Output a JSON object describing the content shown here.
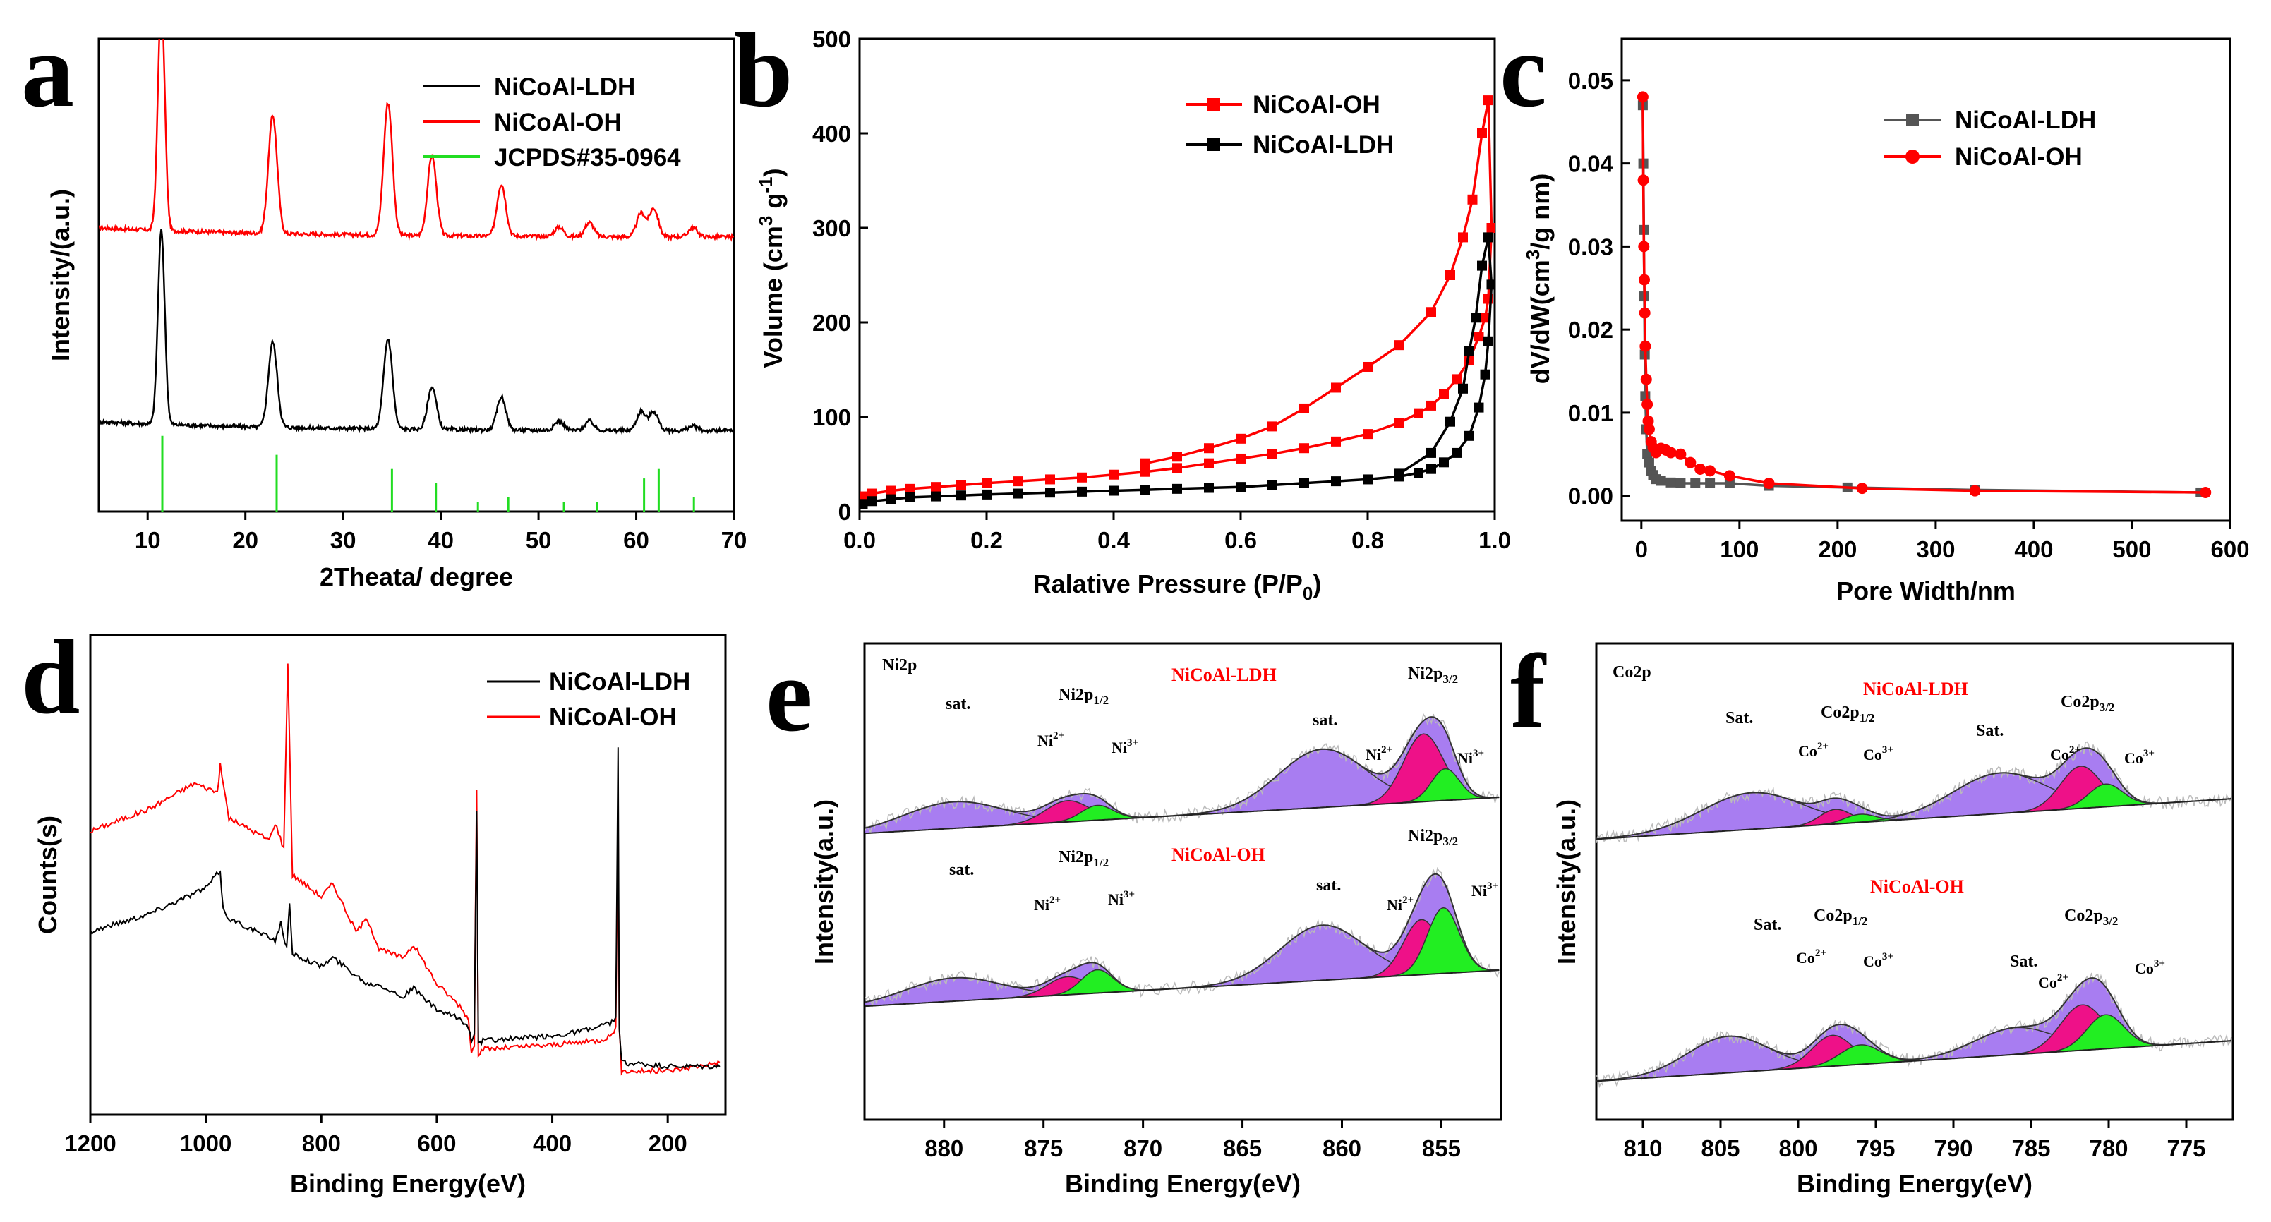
{
  "colors": {
    "ldh": "#000000",
    "oh": "#ff0000",
    "jcpds": "#22dd22",
    "envelope": "#9966ee",
    "ni2": "#ee1188",
    "ni3": "#22ee22",
    "raw": "#bbbbbb",
    "sample_label": "#ff0000"
  },
  "chart_data": [
    {
      "panel": "a",
      "type": "line",
      "title": "",
      "xlabel": "2Theata/ degree",
      "ylabel": "Intensity/(a.u.)",
      "xlim": [
        5,
        70
      ],
      "xticks": [
        "10",
        "20",
        "30",
        "40",
        "50",
        "60",
        "70"
      ],
      "legend": [
        "NiCoAl-LDH",
        "NiCoAl-OH",
        "JCPDS#35-0964"
      ],
      "legend_position": "top-right",
      "peaks_2theta": [
        11.4,
        22.8,
        34.6,
        39.1,
        46.2,
        52.1,
        55.2,
        60.5,
        61.8,
        65.8
      ],
      "series": [
        {
          "name": "NiCoAl-OH",
          "baseline": 0.58,
          "heights": [
            0.49,
            0.25,
            0.28,
            0.17,
            0.11,
            0.02,
            0.03,
            0.05,
            0.06,
            0.02
          ]
        },
        {
          "name": "NiCoAl-LDH",
          "baseline": 0.17,
          "heights": [
            0.41,
            0.18,
            0.19,
            0.09,
            0.07,
            0.02,
            0.02,
            0.04,
            0.04,
            0.01
          ]
        }
      ],
      "reference_lines": {
        "name": "JCPDS#35-0964",
        "positions": [
          11.5,
          23.2,
          35.0,
          39.5,
          43.8,
          46.9,
          52.6,
          56.0,
          60.8,
          62.3,
          65.9
        ],
        "heights": [
          0.16,
          0.12,
          0.09,
          0.06,
          0.02,
          0.03,
          0.02,
          0.02,
          0.07,
          0.09,
          0.03
        ]
      }
    },
    {
      "panel": "b",
      "type": "line",
      "title": "",
      "xlabel": "Ralative Pressure (P/P0)",
      "ylabel": "Volume (cm3 g-1)",
      "xlim": [
        0,
        1.0
      ],
      "ylim": [
        0,
        500
      ],
      "xticks": [
        "0.0",
        "0.2",
        "0.4",
        "0.6",
        "0.8",
        "1.0"
      ],
      "yticks": [
        "0",
        "100",
        "200",
        "300",
        "400",
        "500"
      ],
      "legend": [
        "NiCoAl-OH",
        "NiCoAl-LDH"
      ],
      "legend_position": "top-center",
      "series": [
        {
          "name": "NiCoAl-OH",
          "x": [
            0.005,
            0.02,
            0.05,
            0.08,
            0.12,
            0.16,
            0.2,
            0.25,
            0.3,
            0.35,
            0.4,
            0.45,
            0.5,
            0.55,
            0.6,
            0.65,
            0.7,
            0.75,
            0.8,
            0.85,
            0.88,
            0.9,
            0.92,
            0.94,
            0.96,
            0.975,
            0.985,
            0.99,
            0.995,
            0.99,
            0.98,
            0.965,
            0.95,
            0.93,
            0.9,
            0.85,
            0.8,
            0.75,
            0.7,
            0.65,
            0.6,
            0.55,
            0.5,
            0.45
          ],
          "y": [
            16,
            19,
            22,
            24,
            26,
            28,
            30,
            32,
            34,
            36,
            39,
            42,
            46,
            51,
            56,
            61,
            67,
            74,
            82,
            94,
            104,
            112,
            124,
            140,
            160,
            185,
            205,
            225,
            300,
            435,
            400,
            330,
            290,
            250,
            211,
            176,
            153,
            131,
            109,
            90,
            77,
            67,
            58,
            51
          ]
        },
        {
          "name": "NiCoAl-LDH",
          "x": [
            0.005,
            0.02,
            0.05,
            0.08,
            0.12,
            0.16,
            0.2,
            0.25,
            0.3,
            0.35,
            0.4,
            0.45,
            0.5,
            0.55,
            0.6,
            0.65,
            0.7,
            0.75,
            0.8,
            0.85,
            0.88,
            0.9,
            0.92,
            0.94,
            0.96,
            0.975,
            0.985,
            0.99,
            0.995,
            0.99,
            0.98,
            0.97,
            0.96,
            0.95,
            0.93,
            0.9,
            0.85
          ],
          "y": [
            8,
            11,
            13,
            15,
            16,
            17,
            18,
            19,
            20,
            21,
            22,
            23,
            24,
            25,
            26,
            28,
            30,
            32,
            34,
            37,
            41,
            45,
            52,
            62,
            80,
            110,
            145,
            180,
            240,
            290,
            260,
            205,
            170,
            130,
            95,
            62,
            40
          ]
        }
      ]
    },
    {
      "panel": "c",
      "type": "line",
      "title": "",
      "xlabel": "Pore Width/nm",
      "ylabel": "dV/dW(cm3/g nm)",
      "xlim": [
        -20,
        600
      ],
      "ylim": [
        -0.003,
        0.055
      ],
      "xticks": [
        "0",
        "100",
        "200",
        "300",
        "400",
        "500",
        "600"
      ],
      "yticks": [
        "0.00",
        "0.01",
        "0.02",
        "0.03",
        "0.04",
        "0.05"
      ],
      "legend": [
        "NiCoAl-LDH",
        "NiCoAl-OH"
      ],
      "legend_position": "top-right",
      "series": [
        {
          "name": "NiCoAl-LDH",
          "x": [
            1.5,
            2,
            2.5,
            3,
            3.5,
            4,
            5,
            6,
            8,
            10,
            12,
            15,
            20,
            30,
            40,
            55,
            70,
            90,
            130,
            210,
            340,
            570
          ],
          "y": [
            0.047,
            0.04,
            0.032,
            0.024,
            0.017,
            0.012,
            0.008,
            0.005,
            0.004,
            0.003,
            0.0025,
            0.002,
            0.0018,
            0.0016,
            0.0015,
            0.0015,
            0.0015,
            0.0015,
            0.0012,
            0.001,
            0.0007,
            0.0004
          ]
        },
        {
          "name": "NiCoAl-OH",
          "x": [
            1.5,
            2,
            2.5,
            3,
            3.5,
            4,
            5,
            6,
            7,
            8,
            10,
            12,
            15,
            20,
            25,
            30,
            40,
            50,
            60,
            70,
            90,
            130,
            225,
            340,
            575
          ],
          "y": [
            0.048,
            0.038,
            0.03,
            0.026,
            0.022,
            0.018,
            0.014,
            0.011,
            0.009,
            0.008,
            0.0065,
            0.0058,
            0.0052,
            0.0057,
            0.0055,
            0.0052,
            0.005,
            0.004,
            0.0032,
            0.003,
            0.0024,
            0.0015,
            0.0009,
            0.0006,
            0.0004
          ]
        }
      ]
    },
    {
      "panel": "d",
      "type": "line",
      "title": "",
      "xlabel": "Binding Energy(eV)",
      "ylabel": "Counts(s)",
      "xlim": [
        1200,
        100
      ],
      "xticks": [
        "1200",
        "1000",
        "800",
        "600",
        "400",
        "200"
      ],
      "legend": [
        "NiCoAl-LDH",
        "NiCoAl-OH"
      ],
      "legend_position": "top-right",
      "features_ev": [
        975,
        880,
        860,
        780,
        710,
        640,
        530,
        285
      ],
      "series": [
        {
          "name": "NiCoAl-OH",
          "x": [
            1200,
            1100,
            1020,
            980,
            975,
            960,
            890,
            880,
            865,
            858,
            850,
            800,
            780,
            740,
            720,
            700,
            660,
            640,
            600,
            560,
            545,
            540,
            535,
            531,
            528,
            520,
            400,
            320,
            300,
            290,
            286,
            284,
            280,
            200,
            110
          ],
          "y": [
            0.65,
            0.7,
            0.76,
            0.74,
            0.8,
            0.68,
            0.63,
            0.67,
            0.61,
            1.04,
            0.55,
            0.5,
            0.53,
            0.42,
            0.45,
            0.38,
            0.36,
            0.39,
            0.3,
            0.25,
            0.22,
            0.14,
            0.16,
            0.75,
            0.14,
            0.15,
            0.16,
            0.17,
            0.18,
            0.2,
            0.7,
            0.2,
            0.1,
            0.1,
            0.12
          ]
        },
        {
          "name": "NiCoAl-LDH",
          "x": [
            1200,
            1100,
            1000,
            975,
            970,
            960,
            880,
            870,
            860,
            855,
            850,
            800,
            780,
            720,
            700,
            660,
            640,
            600,
            560,
            545,
            540,
            535,
            531,
            528,
            520,
            400,
            320,
            300,
            290,
            286,
            284,
            280,
            200,
            110
          ],
          "y": [
            0.42,
            0.46,
            0.52,
            0.56,
            0.47,
            0.45,
            0.4,
            0.44,
            0.38,
            0.48,
            0.37,
            0.34,
            0.36,
            0.3,
            0.3,
            0.27,
            0.29,
            0.24,
            0.22,
            0.2,
            0.17,
            0.19,
            0.7,
            0.16,
            0.17,
            0.18,
            0.2,
            0.21,
            0.22,
            0.84,
            0.2,
            0.12,
            0.11,
            0.11
          ]
        }
      ]
    },
    {
      "panel": "e",
      "type": "line",
      "title": "Ni2p",
      "xlabel": "Binding Energy(eV)",
      "ylabel": "Intensity(a.u.)",
      "xlim": [
        884,
        852
      ],
      "xticks": [
        "880",
        "875",
        "870",
        "865",
        "860",
        "855"
      ],
      "sample_labels": [
        "NiCoAl-LDH",
        "NiCoAl-OH"
      ],
      "peak_labels": [
        "sat.",
        "Ni2p1/2",
        "Ni2+",
        "Ni3+",
        "sat.",
        "Ni2p3/2",
        "Ni2+",
        "Ni3+"
      ],
      "spectra": [
        {
          "name": "NiCoAl-LDH",
          "components": [
            {
              "label": "sat.",
              "center": 879.5,
              "height": 0.25,
              "width": 2.5
            },
            {
              "label": "Ni2+",
              "center": 873.8,
              "height": 0.2,
              "width": 1.1
            },
            {
              "label": "Ni3+",
              "center": 872.3,
              "height": 0.14,
              "width": 0.8
            },
            {
              "label": "sat.",
              "center": 861.0,
              "height": 0.55,
              "width": 2.2
            },
            {
              "label": "Ni2+",
              "center": 855.9,
              "height": 0.64,
              "width": 1.0
            },
            {
              "label": "Ni3+",
              "center": 854.8,
              "height": 0.3,
              "width": 0.7
            }
          ]
        },
        {
          "name": "NiCoAl-OH",
          "components": [
            {
              "label": "sat.",
              "center": 879.5,
              "height": 0.22,
              "width": 2.4
            },
            {
              "label": "Ni2+",
              "center": 873.8,
              "height": 0.17,
              "width": 1.0
            },
            {
              "label": "Ni3+",
              "center": 872.3,
              "height": 0.22,
              "width": 0.8
            },
            {
              "label": "sat.",
              "center": 861.0,
              "height": 0.52,
              "width": 2.1
            },
            {
              "label": "Ni2+",
              "center": 856.0,
              "height": 0.52,
              "width": 0.9
            },
            {
              "label": "Ni3+",
              "center": 854.9,
              "height": 0.62,
              "width": 0.8
            }
          ]
        }
      ]
    },
    {
      "panel": "f",
      "type": "line",
      "title": "Co2p",
      "xlabel": "Binding Energy(eV)",
      "ylabel": "Intensity(a.u.)",
      "xlim": [
        813,
        772
      ],
      "xticks": [
        "810",
        "805",
        "800",
        "795",
        "790",
        "785",
        "780",
        "775"
      ],
      "sample_labels": [
        "NiCoAl-LDH",
        "NiCoAl-OH"
      ],
      "peak_labels": [
        "Sat.",
        "Co2p1/2",
        "Co2+",
        "Co3+",
        "Sat.",
        "Co2p3/2",
        "Co2+",
        "Co3+"
      ],
      "spectra": [
        {
          "name": "NiCoAl-LDH",
          "components": [
            {
              "label": "Sat.",
              "center": 803.0,
              "height": 0.45,
              "width": 3.2
            },
            {
              "label": "Co2+",
              "center": 797.6,
              "height": 0.18,
              "width": 1.0
            },
            {
              "label": "Co3+",
              "center": 796.0,
              "height": 0.1,
              "width": 1.0
            },
            {
              "label": "Sat.",
              "center": 787.0,
              "height": 0.5,
              "width": 3.0
            },
            {
              "label": "Co2+",
              "center": 781.8,
              "height": 0.52,
              "width": 1.3
            },
            {
              "label": "Co3+",
              "center": 780.2,
              "height": 0.28,
              "width": 1.1
            }
          ]
        },
        {
          "name": "NiCoAl-OH",
          "components": [
            {
              "label": "Sat.",
              "center": 804.5,
              "height": 0.45,
              "width": 2.6
            },
            {
              "label": "Co2+",
              "center": 797.8,
              "height": 0.38,
              "width": 1.3
            },
            {
              "label": "Co3+",
              "center": 796.0,
              "height": 0.24,
              "width": 1.3
            },
            {
              "label": "Sat.",
              "center": 786.0,
              "height": 0.33,
              "width": 2.6
            },
            {
              "label": "Co2+",
              "center": 781.7,
              "height": 0.56,
              "width": 1.4
            },
            {
              "label": "Co3+",
              "center": 780.2,
              "height": 0.42,
              "width": 1.2
            }
          ]
        }
      ]
    }
  ]
}
